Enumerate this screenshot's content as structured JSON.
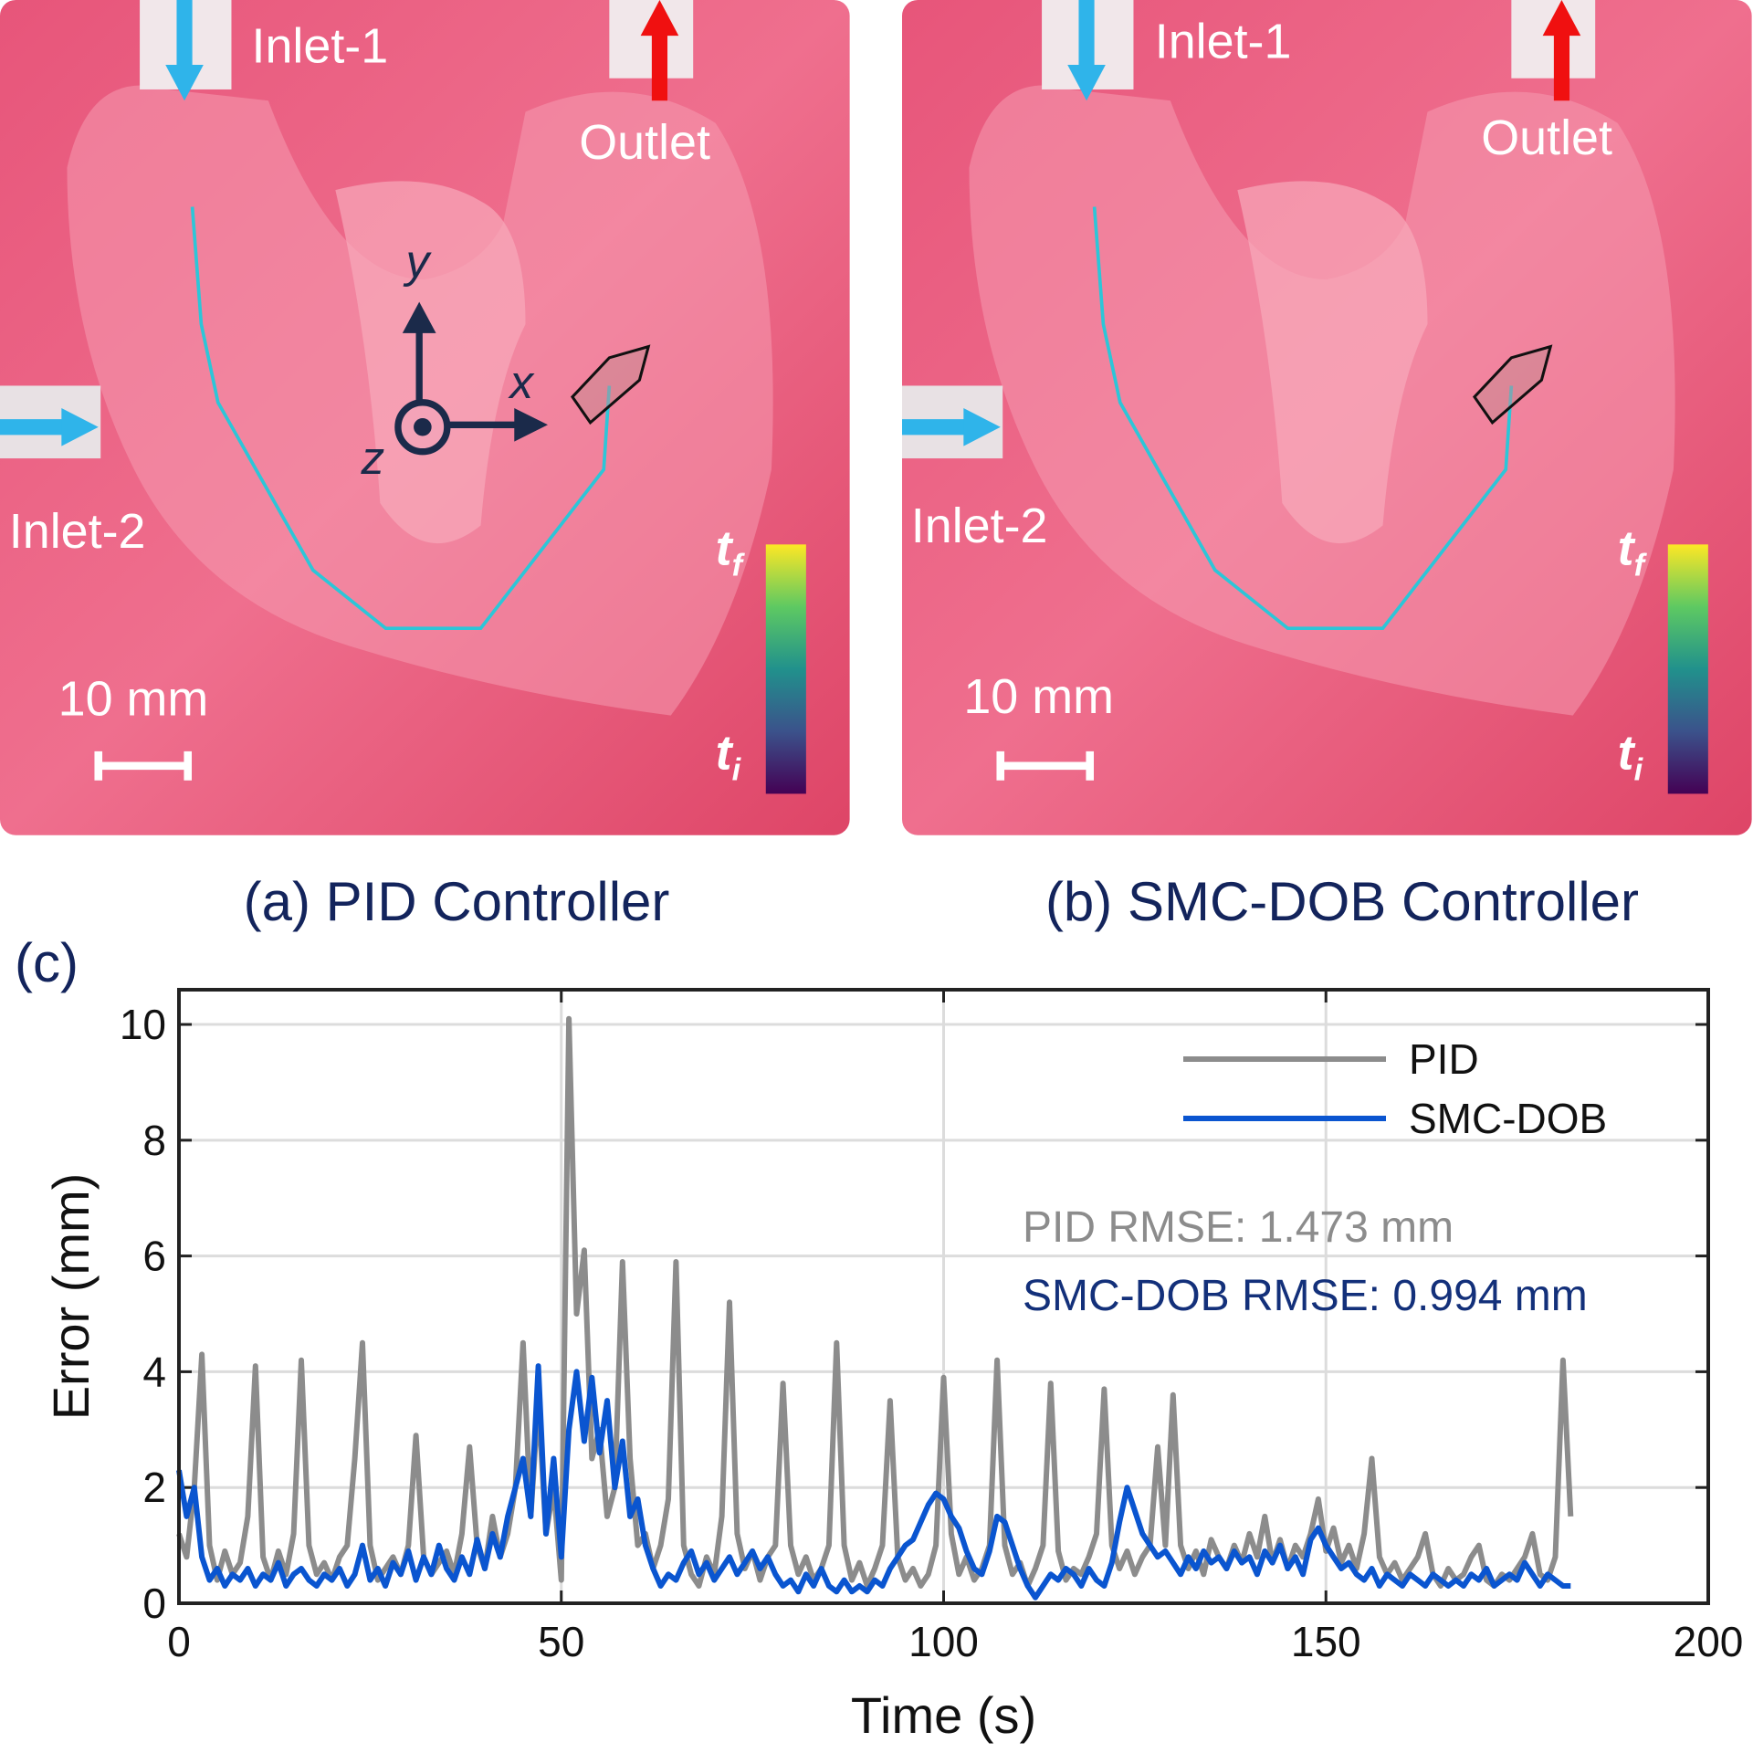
{
  "panels": [
    {
      "caption": "(a) PID Controller",
      "inlet1": "Inlet-1",
      "outlet": "Outlet",
      "inlet2": "Inlet-2",
      "scale": "10 mm",
      "cb_top": {
        "base": "t",
        "sub": "f"
      },
      "cb_bottom": {
        "base": "t",
        "sub": "i"
      },
      "axis_x": "x",
      "axis_y": "y",
      "axis_z": "z"
    },
    {
      "caption": "(b) SMC-DOB Controller",
      "inlet1": "Inlet-1",
      "outlet": "Outlet",
      "inlet2": "Inlet-2",
      "scale": "10 mm",
      "cb_top": {
        "base": "t",
        "sub": "f"
      },
      "cb_bottom": {
        "base": "t",
        "sub": "i"
      }
    }
  ],
  "chart_label": "(c)",
  "chart_data": {
    "type": "line",
    "xlabel": "Time (s)",
    "ylabel": "Error (mm)",
    "xlim": [
      0,
      200
    ],
    "ylim": [
      0,
      10.6
    ],
    "xticks": [
      0,
      50,
      100,
      150,
      200
    ],
    "yticks": [
      0,
      2,
      4,
      6,
      8,
      10
    ],
    "grid": true,
    "legend": "upper right",
    "annotations": [
      {
        "text": "PID RMSE: 1.473 mm",
        "color": "#8c8c8c"
      },
      {
        "text": "SMC-DOB RMSE: 0.994 mm",
        "color": "#13307a"
      }
    ],
    "x": [
      0,
      1,
      2,
      3,
      4,
      5,
      6,
      7,
      8,
      9,
      10,
      11,
      12,
      13,
      14,
      15,
      16,
      17,
      18,
      19,
      20,
      21,
      22,
      23,
      24,
      25,
      26,
      27,
      28,
      29,
      30,
      31,
      32,
      33,
      34,
      35,
      36,
      37,
      38,
      39,
      40,
      41,
      42,
      43,
      44,
      45,
      46,
      47,
      48,
      49,
      50,
      51,
      52,
      53,
      54,
      55,
      56,
      57,
      58,
      59,
      60,
      61,
      62,
      63,
      64,
      65,
      66,
      67,
      68,
      69,
      70,
      71,
      72,
      73,
      74,
      75,
      76,
      77,
      78,
      79,
      80,
      81,
      82,
      83,
      84,
      85,
      86,
      87,
      88,
      89,
      90,
      91,
      92,
      93,
      94,
      95,
      96,
      97,
      98,
      99,
      100,
      101,
      102,
      103,
      104,
      105,
      106,
      107,
      108,
      109,
      110,
      111,
      112,
      113,
      114,
      115,
      116,
      117,
      118,
      119,
      120,
      121,
      122,
      123,
      124,
      125,
      126,
      127,
      128,
      129,
      130,
      131,
      132,
      133,
      134,
      135,
      136,
      137,
      138,
      139,
      140,
      141,
      142,
      143,
      144,
      145,
      146,
      147,
      148,
      149,
      150,
      151,
      152,
      153,
      154,
      155,
      156,
      157,
      158,
      159,
      160,
      161,
      162,
      163,
      164,
      165,
      166,
      167,
      168,
      169,
      170,
      171,
      172,
      173,
      174,
      175,
      176,
      177,
      178,
      179,
      180,
      181,
      182
    ],
    "series": [
      {
        "name": "PID",
        "color": "#8c8c8c",
        "values": [
          1.2,
          0.8,
          2.0,
          4.3,
          1.0,
          0.4,
          0.9,
          0.5,
          0.7,
          1.5,
          4.1,
          0.8,
          0.4,
          0.9,
          0.5,
          1.2,
          4.2,
          1.0,
          0.5,
          0.7,
          0.4,
          0.8,
          1.0,
          2.5,
          4.5,
          1.0,
          0.4,
          0.6,
          0.8,
          0.5,
          1.0,
          2.9,
          0.8,
          0.5,
          0.7,
          0.9,
          0.5,
          1.2,
          2.7,
          1.0,
          0.6,
          1.5,
          0.8,
          1.2,
          2.0,
          4.5,
          1.5,
          3.5,
          1.2,
          2.0,
          0.4,
          10.1,
          5.0,
          6.1,
          2.5,
          3.0,
          1.5,
          2.0,
          5.9,
          2.5,
          1.0,
          1.2,
          0.6,
          1.0,
          1.8,
          5.9,
          1.0,
          0.5,
          0.3,
          0.8,
          0.5,
          1.5,
          5.2,
          1.2,
          0.6,
          0.9,
          0.4,
          0.8,
          1.0,
          3.8,
          1.0,
          0.5,
          0.8,
          0.4,
          0.6,
          1.0,
          4.5,
          1.0,
          0.4,
          0.7,
          0.3,
          0.6,
          1.0,
          3.5,
          0.8,
          0.4,
          0.6,
          0.3,
          0.5,
          1.0,
          3.9,
          1.2,
          0.5,
          0.8,
          0.4,
          0.6,
          1.0,
          4.2,
          1.0,
          0.5,
          0.7,
          0.3,
          0.6,
          1.0,
          3.8,
          0.9,
          0.4,
          0.6,
          0.5,
          0.8,
          1.2,
          3.7,
          1.0,
          0.6,
          0.9,
          0.5,
          0.8,
          1.0,
          2.7,
          1.0,
          3.6,
          1.0,
          0.6,
          0.9,
          0.5,
          1.1,
          0.8,
          0.6,
          1.0,
          0.7,
          1.2,
          0.8,
          1.5,
          0.7,
          1.1,
          0.6,
          1.0,
          0.8,
          1.2,
          1.8,
          0.9,
          1.3,
          0.7,
          1.0,
          0.6,
          1.2,
          2.5,
          0.8,
          0.5,
          0.7,
          0.4,
          0.6,
          0.8,
          1.2,
          0.5,
          0.3,
          0.6,
          0.4,
          0.5,
          0.8,
          1.0,
          0.4,
          0.3,
          0.5,
          0.4,
          0.6,
          0.8,
          1.2,
          0.5,
          0.4,
          0.8,
          4.2,
          1.5
        ]
      },
      {
        "name": "SMC-DOB",
        "color": "#0a55d0",
        "values": [
          2.3,
          1.5,
          2.0,
          0.8,
          0.4,
          0.6,
          0.3,
          0.5,
          0.4,
          0.6,
          0.3,
          0.5,
          0.4,
          0.7,
          0.3,
          0.5,
          0.6,
          0.4,
          0.3,
          0.5,
          0.4,
          0.6,
          0.3,
          0.5,
          1.0,
          0.4,
          0.6,
          0.3,
          0.7,
          0.5,
          0.9,
          0.4,
          0.8,
          0.5,
          1.0,
          0.6,
          0.4,
          0.8,
          0.5,
          1.1,
          0.6,
          1.2,
          0.8,
          1.5,
          2.0,
          2.5,
          1.5,
          4.1,
          1.2,
          2.5,
          0.8,
          3.0,
          4.0,
          2.8,
          3.9,
          2.6,
          3.5,
          2.0,
          2.8,
          1.5,
          1.8,
          1.0,
          0.6,
          0.3,
          0.5,
          0.4,
          0.7,
          0.9,
          0.5,
          0.7,
          0.4,
          0.6,
          0.8,
          0.5,
          0.7,
          0.9,
          0.6,
          0.8,
          0.5,
          0.3,
          0.4,
          0.2,
          0.5,
          0.3,
          0.6,
          0.3,
          0.2,
          0.4,
          0.2,
          0.3,
          0.2,
          0.4,
          0.3,
          0.6,
          0.8,
          1.0,
          1.1,
          1.4,
          1.7,
          1.9,
          1.8,
          1.5,
          1.3,
          0.9,
          0.6,
          0.5,
          0.9,
          1.5,
          1.4,
          1.0,
          0.6,
          0.3,
          0.1,
          0.3,
          0.5,
          0.4,
          0.6,
          0.5,
          0.3,
          0.6,
          0.4,
          0.3,
          0.7,
          1.4,
          2.0,
          1.6,
          1.2,
          1.0,
          0.8,
          0.9,
          0.7,
          0.5,
          0.8,
          0.6,
          0.9,
          0.7,
          0.8,
          0.6,
          0.9,
          0.7,
          0.8,
          0.5,
          0.9,
          0.7,
          1.0,
          0.6,
          0.8,
          0.5,
          1.1,
          1.3,
          1.0,
          0.8,
          0.6,
          0.7,
          0.5,
          0.4,
          0.6,
          0.3,
          0.5,
          0.4,
          0.3,
          0.5,
          0.4,
          0.3,
          0.5,
          0.4,
          0.3,
          0.4,
          0.3,
          0.5,
          0.4,
          0.6,
          0.3,
          0.4,
          0.5,
          0.4,
          0.7,
          0.5,
          0.3,
          0.5,
          0.4,
          0.3,
          0.3
        ]
      }
    ]
  }
}
